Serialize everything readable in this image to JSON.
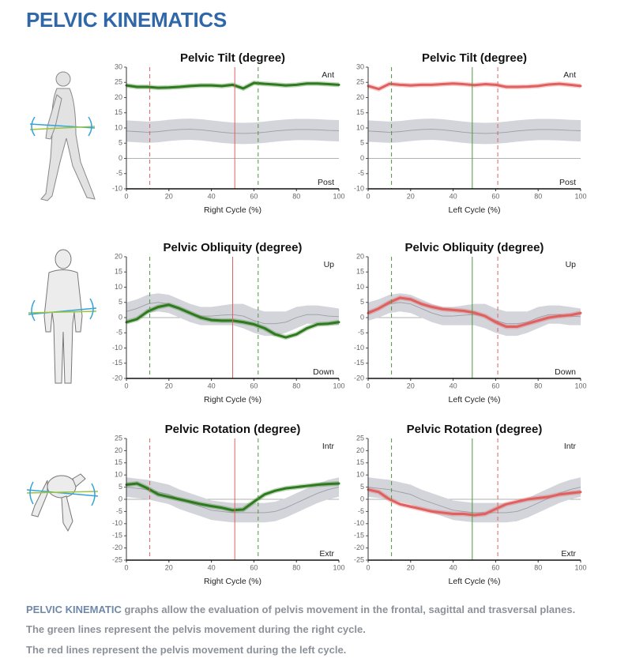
{
  "header": {
    "title": "PELVIC KINEMATICS"
  },
  "chart_data": [
    {
      "type": "line",
      "title": "Pelvic Tilt (degree)",
      "xlabel": "Right Cycle (%)",
      "label_top": "Ant",
      "label_bottom": "Post",
      "x": [
        0,
        5,
        10,
        15,
        20,
        25,
        30,
        35,
        40,
        45,
        50,
        55,
        60,
        65,
        70,
        75,
        80,
        85,
        90,
        95,
        100
      ],
      "xlim": [
        0,
        100
      ],
      "xticks": [
        0,
        20,
        40,
        60,
        80,
        100
      ],
      "ylim": [
        -10,
        30
      ],
      "yticks": [
        -10,
        -5,
        0,
        5,
        10,
        15,
        20,
        25,
        30
      ],
      "zero_line": true,
      "series": [
        {
          "color": "#d3d5da",
          "line_color": "#9a9ea6",
          "values": [
            9,
            8.8,
            8.6,
            8.8,
            9.2,
            9.5,
            9.6,
            9.4,
            9,
            8.6,
            8.3,
            8.2,
            8.3,
            8.6,
            9,
            9.3,
            9.5,
            9.5,
            9.4,
            9.2,
            9.1
          ],
          "lower": [
            5.5,
            5.3,
            5.1,
            5.3,
            5.7,
            6,
            6.1,
            5.9,
            5.5,
            5.1,
            4.8,
            4.7,
            4.8,
            5.1,
            5.5,
            5.8,
            6,
            6,
            5.9,
            5.7,
            5.6
          ],
          "upper": [
            12.5,
            12.3,
            12.1,
            12.3,
            12.7,
            13,
            13.1,
            12.9,
            12.5,
            12.1,
            11.8,
            11.7,
            11.8,
            12.1,
            12.5,
            12.8,
            13,
            13,
            12.9,
            12.7,
            12.6
          ]
        },
        {
          "color": "#2f7a1f",
          "values": [
            24,
            23.5,
            23.5,
            23.2,
            23.3,
            23.5,
            23.8,
            24,
            24,
            23.8,
            24.2,
            23,
            24.8,
            24.5,
            24.3,
            24,
            24.2,
            24.6,
            24.6,
            24.4,
            24.2
          ]
        }
      ],
      "vlines": [
        {
          "x": 11,
          "color": "#e06060",
          "style": "dashed"
        },
        {
          "x": 51,
          "color": "#e06060",
          "style": "solid"
        },
        {
          "x": 62,
          "color": "#4a9a3a",
          "style": "dashed"
        }
      ]
    },
    {
      "type": "line",
      "title": "Pelvic Tilt (degree)",
      "xlabel": "Left Cycle (%)",
      "label_top": "Ant",
      "label_bottom": "Post",
      "x": [
        0,
        5,
        10,
        15,
        20,
        25,
        30,
        35,
        40,
        45,
        50,
        55,
        60,
        65,
        70,
        75,
        80,
        85,
        90,
        95,
        100
      ],
      "xlim": [
        0,
        100
      ],
      "xticks": [
        0,
        20,
        40,
        60,
        80,
        100
      ],
      "ylim": [
        -10,
        30
      ],
      "yticks": [
        -10,
        -5,
        0,
        5,
        10,
        15,
        20,
        25,
        30
      ],
      "zero_line": true,
      "series": [
        {
          "color": "#d3d5da",
          "line_color": "#9a9ea6",
          "values": [
            9,
            8.8,
            8.6,
            8.8,
            9.2,
            9.5,
            9.6,
            9.4,
            9,
            8.6,
            8.3,
            8.2,
            8.3,
            8.6,
            9,
            9.3,
            9.5,
            9.5,
            9.4,
            9.2,
            9.1
          ],
          "lower": [
            5.5,
            5.3,
            5.1,
            5.3,
            5.7,
            6,
            6.1,
            5.9,
            5.5,
            5.1,
            4.8,
            4.7,
            4.8,
            5.1,
            5.5,
            5.8,
            6,
            6,
            5.9,
            5.7,
            5.6
          ],
          "upper": [
            12.5,
            12.3,
            12.1,
            12.3,
            12.7,
            13,
            13.1,
            12.9,
            12.5,
            12.1,
            11.8,
            11.7,
            11.8,
            12.1,
            12.5,
            12.8,
            13,
            13,
            12.9,
            12.7,
            12.6
          ]
        },
        {
          "color": "#e06060",
          "values": [
            23.8,
            22.8,
            24.5,
            24.2,
            24,
            24.2,
            24.2,
            24.4,
            24.6,
            24.4,
            24.1,
            24.4,
            24.2,
            23.5,
            23.5,
            23.6,
            23.8,
            24.3,
            24.5,
            24.2,
            23.8
          ]
        }
      ],
      "vlines": [
        {
          "x": 11,
          "color": "#4a9a3a",
          "style": "dashed"
        },
        {
          "x": 49,
          "color": "#4a9a3a",
          "style": "solid"
        },
        {
          "x": 61,
          "color": "#e06060",
          "style": "dashed"
        }
      ]
    },
    {
      "type": "line",
      "title": "Pelvic Obliquity (degree)",
      "xlabel": "Right Cycle (%)",
      "label_top": "Up",
      "label_bottom": "Down",
      "x": [
        0,
        5,
        10,
        15,
        20,
        25,
        30,
        35,
        40,
        45,
        50,
        55,
        60,
        65,
        70,
        75,
        80,
        85,
        90,
        95,
        100
      ],
      "xlim": [
        0,
        100
      ],
      "xticks": [
        0,
        20,
        40,
        60,
        80,
        100
      ],
      "ylim": [
        -20,
        20
      ],
      "yticks": [
        -20,
        -15,
        -10,
        -5,
        0,
        5,
        10,
        15,
        20
      ],
      "zero_line": true,
      "series": [
        {
          "color": "#d3d5da",
          "line_color": "#9a9ea6",
          "values": [
            2,
            3,
            4.5,
            5,
            4.5,
            3,
            1.5,
            0.5,
            0.5,
            0.8,
            1,
            0.5,
            -1,
            -2,
            -2,
            -1.5,
            0,
            1,
            1,
            0.5,
            0.3
          ],
          "lower": [
            -1,
            0,
            1.5,
            2,
            1.5,
            0,
            -1.5,
            -2.5,
            -2.5,
            -2.5,
            -2.5,
            -3.5,
            -5,
            -6,
            -6,
            -5,
            -3.5,
            -2,
            -2,
            -2.5,
            -2.5
          ],
          "upper": [
            5,
            6,
            7.5,
            8,
            7.5,
            6,
            4.5,
            3.5,
            3.5,
            4,
            4.5,
            4.5,
            3,
            2,
            2,
            2,
            3.5,
            4,
            4,
            3.5,
            3
          ]
        },
        {
          "color": "#2f7a1f",
          "values": [
            -1.5,
            -0.5,
            2,
            3.5,
            4.2,
            3,
            1.5,
            0,
            -0.8,
            -1,
            -1,
            -1.5,
            -2.2,
            -3.5,
            -5.5,
            -6.5,
            -5.5,
            -3.5,
            -2.2,
            -2,
            -1.5
          ]
        }
      ],
      "vlines": [
        {
          "x": 11,
          "color": "#4a9a3a",
          "style": "dashed"
        },
        {
          "x": 50,
          "color": "#e06060",
          "style": "solid"
        },
        {
          "x": 62,
          "color": "#4a9a3a",
          "style": "dashed"
        }
      ]
    },
    {
      "type": "line",
      "title": "Pelvic Obliquity (degree)",
      "xlabel": "Left Cycle (%)",
      "label_top": "Up",
      "label_bottom": "Down",
      "x": [
        0,
        5,
        10,
        15,
        20,
        25,
        30,
        35,
        40,
        45,
        50,
        55,
        60,
        65,
        70,
        75,
        80,
        85,
        90,
        95,
        100
      ],
      "xlim": [
        0,
        100
      ],
      "xticks": [
        0,
        20,
        40,
        60,
        80,
        100
      ],
      "ylim": [
        -20,
        20
      ],
      "yticks": [
        -20,
        -15,
        -10,
        -5,
        0,
        5,
        10,
        15,
        20
      ],
      "zero_line": true,
      "series": [
        {
          "color": "#d3d5da",
          "line_color": "#9a9ea6",
          "values": [
            2,
            3,
            4.5,
            5,
            4.5,
            3,
            1.5,
            0.5,
            0.5,
            0.8,
            1,
            0.5,
            -1,
            -2,
            -2,
            -1.5,
            0,
            1,
            1,
            0.5,
            0.3
          ],
          "lower": [
            -1,
            0,
            1.5,
            2,
            1.5,
            0,
            -1.5,
            -2.5,
            -2.5,
            -2.5,
            -2.5,
            -3.5,
            -5,
            -6,
            -6,
            -5,
            -3.5,
            -2,
            -2,
            -2.5,
            -2.5
          ],
          "upper": [
            5,
            6,
            7.5,
            8,
            7.5,
            6,
            4.5,
            3.5,
            3.5,
            4,
            4.5,
            4.5,
            3,
            2,
            2,
            2,
            3.5,
            4,
            4,
            3.5,
            3
          ]
        },
        {
          "color": "#e06060",
          "values": [
            1.5,
            3,
            5,
            6.5,
            6,
            4.5,
            3.5,
            2.8,
            2.5,
            2.2,
            1.6,
            0.5,
            -1.5,
            -3,
            -3,
            -2,
            -1,
            0,
            0.5,
            0.8,
            1.5
          ]
        }
      ],
      "vlines": [
        {
          "x": 11,
          "color": "#4a9a3a",
          "style": "dashed"
        },
        {
          "x": 49,
          "color": "#4a9a3a",
          "style": "solid"
        },
        {
          "x": 61,
          "color": "#e06060",
          "style": "dashed"
        }
      ]
    },
    {
      "type": "line",
      "title": "Pelvic Rotation (degree)",
      "xlabel": "Right Cycle (%)",
      "label_top": "Intr",
      "label_bottom": "Extr",
      "x": [
        0,
        5,
        10,
        15,
        20,
        25,
        30,
        35,
        40,
        45,
        50,
        55,
        60,
        65,
        70,
        75,
        80,
        85,
        90,
        95,
        100
      ],
      "xlim": [
        0,
        100
      ],
      "xticks": [
        0,
        20,
        40,
        60,
        80,
        100
      ],
      "ylim": [
        -25,
        25
      ],
      "yticks": [
        -25,
        -20,
        -15,
        -10,
        -5,
        0,
        5,
        10,
        15,
        20,
        25
      ],
      "zero_line": true,
      "series": [
        {
          "color": "#d3d5da",
          "line_color": "#9a9ea6",
          "values": [
            5,
            4.5,
            4,
            3,
            2,
            0,
            -1.5,
            -3,
            -4.5,
            -5,
            -5.5,
            -5.5,
            -5.5,
            -5.5,
            -5,
            -3.5,
            -1.5,
            0.5,
            2.5,
            4,
            5
          ],
          "lower": [
            1,
            0.5,
            0,
            -1,
            -2,
            -4,
            -5.5,
            -7,
            -8.5,
            -9,
            -9.5,
            -9.5,
            -9.5,
            -9.5,
            -9,
            -7.5,
            -5.5,
            -3.5,
            -1.5,
            0,
            1
          ],
          "upper": [
            9,
            8.5,
            8,
            7,
            6,
            4,
            2.5,
            1,
            -0.5,
            -1,
            -1.5,
            -1.5,
            -1.5,
            -1.5,
            -1,
            0.5,
            2.5,
            4.5,
            6.5,
            8,
            9
          ]
        },
        {
          "color": "#2f7a1f",
          "values": [
            6,
            6.5,
            4.5,
            2,
            1,
            0,
            -1,
            -2,
            -2.8,
            -3.5,
            -4.5,
            -4.2,
            -1,
            2,
            3.5,
            4.5,
            5,
            5.5,
            6,
            6.3,
            6.5
          ]
        }
      ],
      "vlines": [
        {
          "x": 11,
          "color": "#e06060",
          "style": "dashed"
        },
        {
          "x": 51,
          "color": "#e06060",
          "style": "solid"
        },
        {
          "x": 62,
          "color": "#4a9a3a",
          "style": "dashed"
        }
      ]
    },
    {
      "type": "line",
      "title": "Pelvic Rotation (degree)",
      "xlabel": "Left Cycle (%)",
      "label_top": "Intr",
      "label_bottom": "Extr",
      "x": [
        0,
        5,
        10,
        15,
        20,
        25,
        30,
        35,
        40,
        45,
        50,
        55,
        60,
        65,
        70,
        75,
        80,
        85,
        90,
        95,
        100
      ],
      "xlim": [
        0,
        100
      ],
      "xticks": [
        0,
        20,
        40,
        60,
        80,
        100
      ],
      "ylim": [
        -25,
        25
      ],
      "yticks": [
        -25,
        -20,
        -15,
        -10,
        -5,
        0,
        5,
        10,
        15,
        20,
        25
      ],
      "zero_line": true,
      "series": [
        {
          "color": "#d3d5da",
          "line_color": "#9a9ea6",
          "values": [
            5,
            4.5,
            4,
            3,
            2,
            0,
            -1.5,
            -3,
            -4.5,
            -5,
            -5.5,
            -5.5,
            -5.5,
            -5.5,
            -5,
            -3.5,
            -1.5,
            0.5,
            2.5,
            4,
            5
          ],
          "lower": [
            1,
            0.5,
            0,
            -1,
            -2,
            -4,
            -5.5,
            -7,
            -8.5,
            -9,
            -9.5,
            -9.5,
            -9.5,
            -9.5,
            -9,
            -7.5,
            -5.5,
            -3.5,
            -1.5,
            0,
            1
          ],
          "upper": [
            9,
            8.5,
            8,
            7,
            6,
            4,
            2.5,
            1,
            -0.5,
            -1,
            -1.5,
            -1.5,
            -1.5,
            -1.5,
            -1,
            0.5,
            2.5,
            4.5,
            6.5,
            8,
            9
          ]
        },
        {
          "color": "#e06060",
          "values": [
            4,
            3,
            0,
            -2,
            -3,
            -4,
            -5,
            -5.5,
            -6,
            -6,
            -6.5,
            -6,
            -4,
            -2,
            -1,
            0,
            0.5,
            1,
            2,
            2.5,
            3
          ]
        }
      ],
      "vlines": [
        {
          "x": 11,
          "color": "#4a9a3a",
          "style": "dashed"
        },
        {
          "x": 49,
          "color": "#4a9a3a",
          "style": "solid"
        },
        {
          "x": 61,
          "color": "#e06060",
          "style": "dashed"
        }
      ]
    }
  ],
  "footer": {
    "lines": [
      [
        "PELVIC KINEMATIC",
        " graphs allow the evaluation of pelvis movement in the frontal, sagittal and trasversal planes."
      ],
      [
        "The green lines represent the pelvis movement during the right cycle."
      ],
      [
        "The red lines represent the pelvis movement during the left cycle."
      ]
    ]
  }
}
